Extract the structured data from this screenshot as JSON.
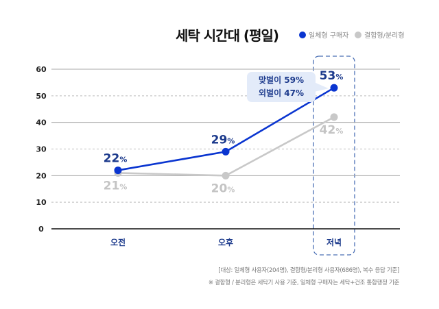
{
  "chart_data": {
    "type": "line",
    "title": "세탁 시간대 (평일)",
    "categories": [
      "오전",
      "오후",
      "저녁"
    ],
    "ylim": [
      0,
      60
    ],
    "yticks": [
      0,
      10,
      20,
      30,
      40,
      50,
      60
    ],
    "grid": true,
    "legend_placement": "top-right",
    "highlight_category": "저녁",
    "series": [
      {
        "name": "일체형 구매자",
        "values": [
          22,
          29,
          53
        ],
        "color": "#0a35d0",
        "labels": [
          "22",
          "29",
          "53"
        ]
      },
      {
        "name": "결합형/분리형",
        "values": [
          21,
          20,
          42
        ],
        "color": "#c8c8c8",
        "labels": [
          "21",
          "20",
          "42"
        ]
      }
    ],
    "percent_suffix": "%",
    "annotation": {
      "lines": [
        "맞벌이 59%",
        "외벌이 47%"
      ],
      "category": "저녁"
    }
  },
  "footnotes": [
    "[대상: 일체형 사용자(204명), 결합형/분리형 사용자(686명), 복수 응답 기준]",
    "※ 결합형 / 분리형은 세탁기 사용 기준, 일체형 구매자는 세탁+건조 통합행정 기준"
  ]
}
